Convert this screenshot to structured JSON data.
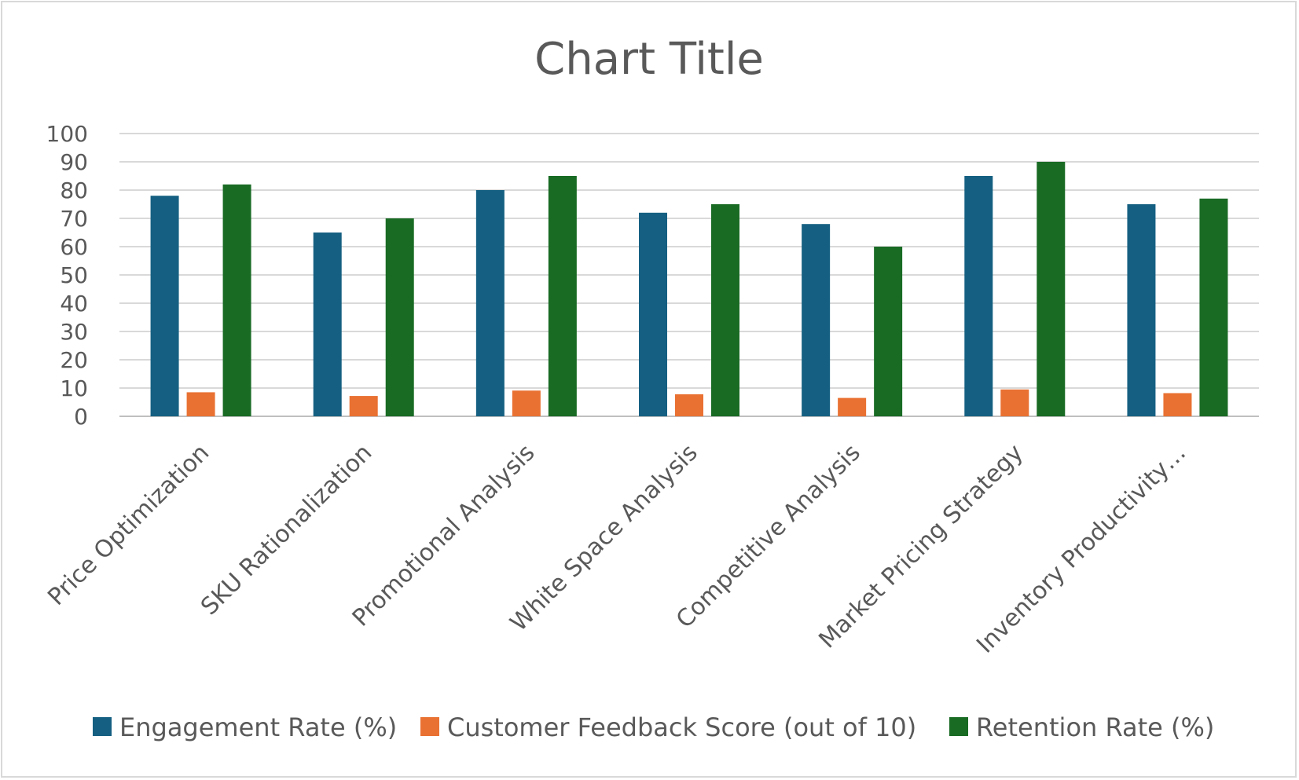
{
  "chart_data": {
    "type": "bar",
    "title": "Chart Title",
    "xlabel": "",
    "ylabel": "",
    "ylim": [
      0,
      100
    ],
    "yticks": [
      0,
      10,
      20,
      30,
      40,
      50,
      60,
      70,
      80,
      90,
      100
    ],
    "grid": true,
    "legend_position": "bottom",
    "categories": [
      "Price Optimization",
      "SKU Rationalization",
      "Promotional Analysis",
      "White Space Analysis",
      "Competitive Analysis",
      "Market Pricing Strategy",
      "Inventory Productivity…"
    ],
    "series": [
      {
        "name": "Engagement Rate (%)",
        "color": "#156082",
        "values": [
          78,
          65,
          80,
          72,
          68,
          85,
          75
        ]
      },
      {
        "name": "Customer Feedback Score (out of 10)",
        "color": "#e97132",
        "values": [
          8.5,
          7.2,
          9.1,
          7.8,
          6.5,
          9.5,
          8.2
        ]
      },
      {
        "name": "Retention Rate (%)",
        "color": "#196b24",
        "values": [
          82,
          70,
          85,
          75,
          60,
          90,
          77
        ]
      }
    ]
  }
}
